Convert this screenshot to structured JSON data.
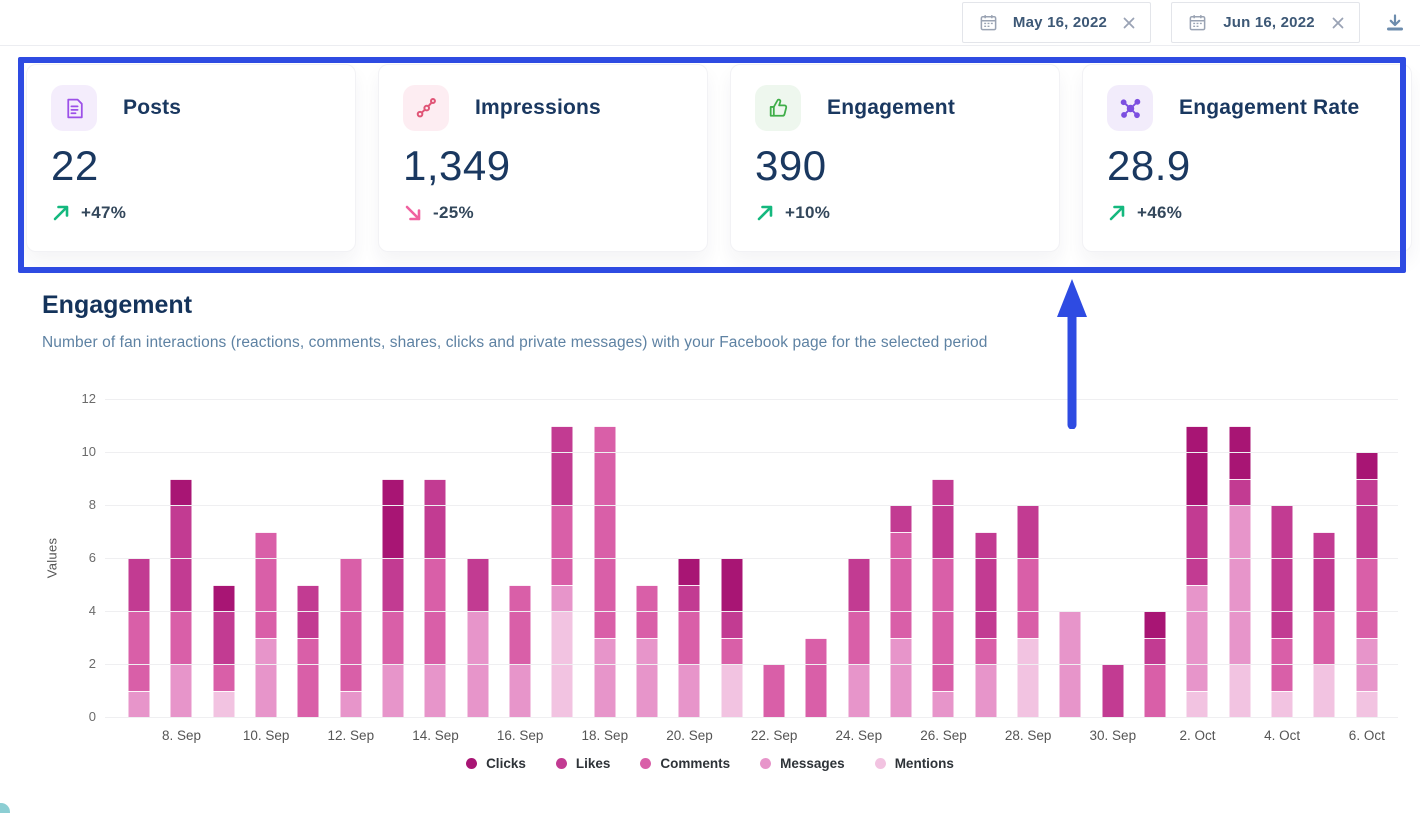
{
  "topbar": {
    "start_date": "May 16, 2022",
    "end_date": "Jun 16, 2022"
  },
  "colors": {
    "highlight_blue": "#2E4BE2",
    "positive_green": "#14B87E",
    "negative_pink": "#F0609F",
    "heading_navy": "#14335B",
    "subtitle_blue_gray": "#5E82A3"
  },
  "kpi_cards": [
    {
      "title": "Posts",
      "value": "22",
      "change": "+47%",
      "direction": "up",
      "icon": "posts-document-icon",
      "icon_color": "#9C50E8",
      "icon_bg": "#F4EDFC"
    },
    {
      "title": "Impressions",
      "value": "1,349",
      "change": "-25%",
      "direction": "down",
      "icon": "impressions-route-icon",
      "icon_color": "#E05577",
      "icon_bg": "#FDEDF2"
    },
    {
      "title": "Engagement",
      "value": "390",
      "change": "+10%",
      "direction": "up",
      "icon": "engagement-thumbs-up-icon",
      "icon_color": "#3FAE49",
      "icon_bg": "#EEF7EE"
    },
    {
      "title": "Engagement Rate",
      "value": "28.9",
      "change": "+46%",
      "direction": "up",
      "icon": "engagement-rate-network-icon",
      "icon_color": "#7C4FE0",
      "icon_bg": "#F2ECFB"
    }
  ],
  "section": {
    "title": "Engagement",
    "subtitle": "Number of fan interactions (reactions, comments, shares, clicks and private messages) with your Facebook page for the selected period"
  },
  "chart_data": {
    "type": "bar",
    "stacked": true,
    "title": "Engagement",
    "xlabel": "",
    "ylabel": "Values",
    "ylim": [
      0,
      12
    ],
    "yticks": [
      0,
      2,
      4,
      6,
      8,
      10,
      12
    ],
    "grid": true,
    "legend_position": "bottom",
    "categories": [
      "7. Sep",
      "8. Sep",
      "9. Sep",
      "10. Sep",
      "11. Sep",
      "12. Sep",
      "13. Sep",
      "14. Sep",
      "15. Sep",
      "16. Sep",
      "17. Sep",
      "18. Sep",
      "19. Sep",
      "20. Sep",
      "21. Sep",
      "22. Sep",
      "23. Sep",
      "24. Sep",
      "25. Sep",
      "26. Sep",
      "27. Sep",
      "28. Sep",
      "29. Sep",
      "30. Sep",
      "1. Oct",
      "2. Oct",
      "3. Oct",
      "4. Oct",
      "5. Oct",
      "6. Oct"
    ],
    "x_tick_labels": [
      "8. Sep",
      "10. Sep",
      "12. Sep",
      "14. Sep",
      "16. Sep",
      "18. Sep",
      "20. Sep",
      "22. Sep",
      "24. Sep",
      "26. Sep",
      "28. Sep",
      "30. Sep",
      "2. Oct",
      "4. Oct",
      "6. Oct"
    ],
    "series": [
      {
        "name": "Clicks",
        "color": "#A81574",
        "values": [
          0,
          1,
          1,
          0,
          0,
          0,
          3,
          0,
          0,
          0,
          0,
          0,
          0,
          1,
          2,
          0,
          0,
          0,
          0,
          0,
          0,
          0,
          0,
          0,
          1,
          3,
          2,
          0,
          0,
          1
        ]
      },
      {
        "name": "Likes",
        "color": "#C23B92",
        "values": [
          2,
          4,
          2,
          0,
          2,
          0,
          2,
          3,
          2,
          0,
          3,
          0,
          0,
          1,
          1,
          0,
          0,
          2,
          1,
          3,
          4,
          2,
          0,
          2,
          1,
          3,
          1,
          5,
          3,
          3
        ]
      },
      {
        "name": "Comments",
        "color": "#D95FA8",
        "values": [
          3,
          2,
          1,
          4,
          3,
          5,
          2,
          4,
          0,
          3,
          3,
          8,
          2,
          2,
          1,
          2,
          3,
          2,
          4,
          5,
          1,
          3,
          0,
          0,
          2,
          0,
          0,
          2,
          2,
          3
        ]
      },
      {
        "name": "Messages",
        "color": "#E795CA",
        "values": [
          1,
          2,
          0,
          3,
          0,
          1,
          2,
          2,
          4,
          2,
          1,
          3,
          3,
          2,
          0,
          0,
          0,
          2,
          3,
          1,
          2,
          0,
          4,
          0,
          0,
          4,
          6,
          0,
          0,
          2
        ]
      },
      {
        "name": "Mentions",
        "color": "#F2C3E1",
        "values": [
          0,
          0,
          1,
          0,
          0,
          0,
          0,
          0,
          0,
          0,
          4,
          0,
          0,
          0,
          2,
          0,
          0,
          0,
          0,
          0,
          0,
          3,
          0,
          0,
          0,
          1,
          2,
          1,
          2,
          1
        ]
      }
    ]
  }
}
